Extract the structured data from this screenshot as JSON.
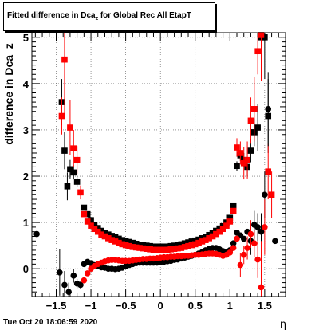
{
  "header": {
    "title_prefix": "Fitted difference in Dca",
    "title_sub": "z",
    "title_suffix": " for Global Rec All EtapT"
  },
  "footer": {
    "timestamp": "Tue Oct 20 18:06:59 2020"
  },
  "chart_data": {
    "type": "scatter",
    "title": "Fitted difference in Dca_z for Global Rec All EtapT",
    "xlabel": "η",
    "ylabel": "difference in Dca_z",
    "xlim": [
      -1.85,
      1.8
    ],
    "ylim": [
      -0.6,
      5.1
    ],
    "xticks": [
      -1.5,
      -1,
      -0.5,
      0,
      0.5,
      1,
      1.5
    ],
    "xtick_labels": [
      "−1.5",
      "−1",
      "−0.5",
      "0",
      "0.5",
      "1",
      "1.5"
    ],
    "yticks": [
      0,
      1,
      2,
      3,
      4,
      5
    ],
    "ytick_labels": [
      "0",
      "1",
      "2",
      "3",
      "4",
      "5"
    ],
    "grid": true,
    "colors": {
      "black": "#000000",
      "red": "#ff0000"
    },
    "series": [
      {
        "marker": "square",
        "color": "#000000",
        "points": [
          {
            "x": -1.42,
            "y": 3.6,
            "err": 0.5
          },
          {
            "x": -1.38,
            "y": 2.55,
            "err": 0.4
          },
          {
            "x": -1.34,
            "y": 1.78,
            "err": 0.3
          },
          {
            "x": -1.3,
            "y": 2.15,
            "err": 0.2
          },
          {
            "x": -1.25,
            "y": 2.08,
            "err": 0.15
          },
          {
            "x": -1.2,
            "y": 1.88,
            "err": 0.12
          },
          {
            "x": -1.1,
            "y": 1.32,
            "err": 0.05
          },
          {
            "x": -1.05,
            "y": 1.18
          },
          {
            "x": -1.0,
            "y": 1.05
          },
          {
            "x": -0.95,
            "y": 0.95
          },
          {
            "x": -0.9,
            "y": 0.88
          },
          {
            "x": -0.85,
            "y": 0.82
          },
          {
            "x": -0.8,
            "y": 0.78
          },
          {
            "x": -0.75,
            "y": 0.74
          },
          {
            "x": -0.7,
            "y": 0.71
          },
          {
            "x": -0.65,
            "y": 0.68
          },
          {
            "x": -0.6,
            "y": 0.65
          },
          {
            "x": -0.55,
            "y": 0.62
          },
          {
            "x": -0.5,
            "y": 0.6
          },
          {
            "x": -0.45,
            "y": 0.58
          },
          {
            "x": -0.4,
            "y": 0.56
          },
          {
            "x": -0.35,
            "y": 0.54
          },
          {
            "x": -0.3,
            "y": 0.52
          },
          {
            "x": -0.25,
            "y": 0.51
          },
          {
            "x": -0.2,
            "y": 0.5
          },
          {
            "x": -0.15,
            "y": 0.49
          },
          {
            "x": -0.1,
            "y": 0.48
          },
          {
            "x": -0.05,
            "y": 0.48
          },
          {
            "x": 0.0,
            "y": 0.48
          },
          {
            "x": 0.05,
            "y": 0.48
          },
          {
            "x": 0.1,
            "y": 0.48
          },
          {
            "x": 0.15,
            "y": 0.49
          },
          {
            "x": 0.2,
            "y": 0.5
          },
          {
            "x": 0.25,
            "y": 0.51
          },
          {
            "x": 0.3,
            "y": 0.53
          },
          {
            "x": 0.35,
            "y": 0.55
          },
          {
            "x": 0.4,
            "y": 0.57
          },
          {
            "x": 0.45,
            "y": 0.59
          },
          {
            "x": 0.5,
            "y": 0.61
          },
          {
            "x": 0.55,
            "y": 0.63
          },
          {
            "x": 0.6,
            "y": 0.66
          },
          {
            "x": 0.65,
            "y": 0.69
          },
          {
            "x": 0.7,
            "y": 0.73
          },
          {
            "x": 0.75,
            "y": 0.77
          },
          {
            "x": 0.8,
            "y": 0.82
          },
          {
            "x": 0.85,
            "y": 0.87
          },
          {
            "x": 0.9,
            "y": 0.92
          },
          {
            "x": 0.95,
            "y": 1.0
          },
          {
            "x": 1.0,
            "y": 1.1
          },
          {
            "x": 1.05,
            "y": 1.35
          },
          {
            "x": 1.1,
            "y": 2.22,
            "err": 0.1
          },
          {
            "x": 1.15,
            "y": 2.45,
            "err": 0.12
          },
          {
            "x": 1.2,
            "y": 2.35,
            "err": 0.15
          },
          {
            "x": 1.25,
            "y": 2.2,
            "err": 0.2
          },
          {
            "x": 1.3,
            "y": 2.55,
            "err": 0.25
          },
          {
            "x": 1.35,
            "y": 2.95,
            "err": 0.3
          },
          {
            "x": 1.4,
            "y": 3.05,
            "err": 0.5
          },
          {
            "x": 1.45,
            "y": 5.0,
            "err": 0.9
          },
          {
            "x": 1.5,
            "y": 5.0,
            "err": 0.9
          },
          {
            "x": 1.55,
            "y": 3.3,
            "err": 0.8
          }
        ]
      },
      {
        "marker": "square",
        "color": "#ff0000",
        "points": [
          {
            "x": -1.42,
            "y": 3.3,
            "err": 0.4
          },
          {
            "x": -1.38,
            "y": 4.52,
            "err": 1.2
          },
          {
            "x": -1.3,
            "y": 3.05,
            "err": 0.6
          },
          {
            "x": -1.25,
            "y": 2.6,
            "err": 0.4
          },
          {
            "x": -1.2,
            "y": 2.35,
            "err": 0.3
          },
          {
            "x": -1.15,
            "y": 1.65,
            "err": 0.15
          },
          {
            "x": -1.1,
            "y": 1.18,
            "err": 0.05
          },
          {
            "x": -1.05,
            "y": 1.02
          },
          {
            "x": -1.0,
            "y": 0.93
          },
          {
            "x": -0.95,
            "y": 0.86
          },
          {
            "x": -0.9,
            "y": 0.8
          },
          {
            "x": -0.85,
            "y": 0.74
          },
          {
            "x": -0.8,
            "y": 0.7
          },
          {
            "x": -0.75,
            "y": 0.66
          },
          {
            "x": -0.7,
            "y": 0.62
          },
          {
            "x": -0.65,
            "y": 0.59
          },
          {
            "x": -0.6,
            "y": 0.56
          },
          {
            "x": -0.55,
            "y": 0.53
          },
          {
            "x": -0.5,
            "y": 0.51
          },
          {
            "x": -0.45,
            "y": 0.49
          },
          {
            "x": -0.4,
            "y": 0.47
          },
          {
            "x": -0.35,
            "y": 0.46
          },
          {
            "x": -0.3,
            "y": 0.45
          },
          {
            "x": -0.25,
            "y": 0.44
          },
          {
            "x": -0.2,
            "y": 0.43
          },
          {
            "x": -0.15,
            "y": 0.42
          },
          {
            "x": -0.1,
            "y": 0.41
          },
          {
            "x": -0.05,
            "y": 0.41
          },
          {
            "x": 0.0,
            "y": 0.41
          },
          {
            "x": 0.05,
            "y": 0.41
          },
          {
            "x": 0.1,
            "y": 0.41
          },
          {
            "x": 0.15,
            "y": 0.42
          },
          {
            "x": 0.2,
            "y": 0.43
          },
          {
            "x": 0.25,
            "y": 0.44
          },
          {
            "x": 0.3,
            "y": 0.45
          },
          {
            "x": 0.35,
            "y": 0.47
          },
          {
            "x": 0.4,
            "y": 0.49
          },
          {
            "x": 0.45,
            "y": 0.51
          },
          {
            "x": 0.5,
            "y": 0.53
          },
          {
            "x": 0.55,
            "y": 0.56
          },
          {
            "x": 0.6,
            "y": 0.59
          },
          {
            "x": 0.65,
            "y": 0.62
          },
          {
            "x": 0.7,
            "y": 0.66
          },
          {
            "x": 0.75,
            "y": 0.7
          },
          {
            "x": 0.8,
            "y": 0.75
          },
          {
            "x": 0.85,
            "y": 0.8
          },
          {
            "x": 0.9,
            "y": 0.86
          },
          {
            "x": 0.95,
            "y": 0.93
          },
          {
            "x": 1.0,
            "y": 1.02
          },
          {
            "x": 1.05,
            "y": 1.25
          },
          {
            "x": 1.1,
            "y": 2.62,
            "err": 0.2
          },
          {
            "x": 1.15,
            "y": 2.5,
            "err": 0.25
          },
          {
            "x": 1.2,
            "y": 2.28,
            "err": 0.35
          },
          {
            "x": 1.25,
            "y": 2.35,
            "err": 0.4
          },
          {
            "x": 1.3,
            "y": 3.2,
            "err": 0.5
          },
          {
            "x": 1.35,
            "y": 3.45,
            "err": 0.7
          },
          {
            "x": 1.4,
            "y": 4.7,
            "err": 0.5
          },
          {
            "x": 1.45,
            "y": 5.05,
            "err": 1.0
          },
          {
            "x": 1.55,
            "y": 2.1,
            "err": 0.6
          },
          {
            "x": 1.6,
            "y": 1.6,
            "err": 0.5
          }
        ]
      },
      {
        "marker": "circle",
        "color": "#000000",
        "points": [
          {
            "x": -1.78,
            "y": 0.75
          },
          {
            "x": -1.45,
            "y": -0.08,
            "err": 0.5
          },
          {
            "x": -1.38,
            "y": -0.35,
            "err": 0.3
          },
          {
            "x": -1.32,
            "y": -0.5,
            "err": 0.2
          },
          {
            "x": -1.25,
            "y": -0.15,
            "err": 0.15
          },
          {
            "x": -1.2,
            "y": -0.32,
            "err": 0.1
          },
          {
            "x": -1.15,
            "y": -0.35,
            "err": 0.08
          },
          {
            "x": -1.1,
            "y": 0.1
          },
          {
            "x": -1.05,
            "y": 0.15
          },
          {
            "x": -1.0,
            "y": 0.12
          },
          {
            "x": -0.95,
            "y": 0.08
          },
          {
            "x": -0.9,
            "y": 0.05
          },
          {
            "x": -0.85,
            "y": 0.03
          },
          {
            "x": -0.8,
            "y": 0.02
          },
          {
            "x": -0.75,
            "y": 0.0
          },
          {
            "x": -0.7,
            "y": 0.0
          },
          {
            "x": -0.65,
            "y": -0.01
          },
          {
            "x": -0.6,
            "y": 0.0
          },
          {
            "x": -0.55,
            "y": 0.02
          },
          {
            "x": -0.5,
            "y": 0.05
          },
          {
            "x": -0.45,
            "y": 0.08
          },
          {
            "x": -0.4,
            "y": 0.1
          },
          {
            "x": -0.35,
            "y": 0.12
          },
          {
            "x": -0.3,
            "y": 0.13
          },
          {
            "x": -0.25,
            "y": 0.13
          },
          {
            "x": -0.2,
            "y": 0.13
          },
          {
            "x": -0.15,
            "y": 0.13
          },
          {
            "x": -0.1,
            "y": 0.13
          },
          {
            "x": -0.05,
            "y": 0.13
          },
          {
            "x": 0.0,
            "y": 0.14
          },
          {
            "x": 0.05,
            "y": 0.15
          },
          {
            "x": 0.1,
            "y": 0.16
          },
          {
            "x": 0.15,
            "y": 0.17
          },
          {
            "x": 0.2,
            "y": 0.19
          },
          {
            "x": 0.25,
            "y": 0.2
          },
          {
            "x": 0.3,
            "y": 0.22
          },
          {
            "x": 0.35,
            "y": 0.24
          },
          {
            "x": 0.4,
            "y": 0.26
          },
          {
            "x": 0.45,
            "y": 0.28
          },
          {
            "x": 0.5,
            "y": 0.3
          },
          {
            "x": 0.55,
            "y": 0.33
          },
          {
            "x": 0.6,
            "y": 0.36
          },
          {
            "x": 0.65,
            "y": 0.4
          },
          {
            "x": 0.7,
            "y": 0.43
          },
          {
            "x": 0.75,
            "y": 0.45
          },
          {
            "x": 0.8,
            "y": 0.45
          },
          {
            "x": 0.85,
            "y": 0.42
          },
          {
            "x": 0.9,
            "y": 0.38
          },
          {
            "x": 0.95,
            "y": 0.35
          },
          {
            "x": 1.0,
            "y": 0.4
          },
          {
            "x": 1.05,
            "y": 0.55
          },
          {
            "x": 1.1,
            "y": 0.78
          },
          {
            "x": 1.15,
            "y": 0.72
          },
          {
            "x": 1.2,
            "y": 0.65
          },
          {
            "x": 1.25,
            "y": 0.8
          },
          {
            "x": 1.3,
            "y": 0.6,
            "err": 0.3
          },
          {
            "x": 1.35,
            "y": 0.95,
            "err": 0.3
          },
          {
            "x": 1.4,
            "y": 0.9,
            "err": 0.3
          },
          {
            "x": 1.45,
            "y": 0.8,
            "err": 0.4
          },
          {
            "x": 1.5,
            "y": 1.6,
            "err": 0.5
          },
          {
            "x": 1.55,
            "y": 3.45,
            "err": 0.8
          },
          {
            "x": 1.65,
            "y": 0.6
          }
        ]
      },
      {
        "marker": "circle",
        "color": "#ff0000",
        "points": [
          {
            "x": -1.1,
            "y": -0.25
          },
          {
            "x": -1.05,
            "y": -0.1
          },
          {
            "x": -1.0,
            "y": 0.0
          },
          {
            "x": -0.95,
            "y": 0.06
          },
          {
            "x": -0.9,
            "y": 0.1
          },
          {
            "x": -0.85,
            "y": 0.13
          },
          {
            "x": -0.8,
            "y": 0.16
          },
          {
            "x": -0.75,
            "y": 0.18
          },
          {
            "x": -0.7,
            "y": 0.19
          },
          {
            "x": -0.65,
            "y": 0.19
          },
          {
            "x": -0.6,
            "y": 0.18
          },
          {
            "x": -0.55,
            "y": 0.17
          },
          {
            "x": -0.5,
            "y": 0.17
          },
          {
            "x": -0.45,
            "y": 0.17
          },
          {
            "x": -0.4,
            "y": 0.18
          },
          {
            "x": -0.35,
            "y": 0.19
          },
          {
            "x": -0.3,
            "y": 0.2
          },
          {
            "x": -0.25,
            "y": 0.21
          },
          {
            "x": -0.2,
            "y": 0.21
          },
          {
            "x": -0.15,
            "y": 0.22
          },
          {
            "x": -0.1,
            "y": 0.22
          },
          {
            "x": -0.05,
            "y": 0.23
          },
          {
            "x": 0.0,
            "y": 0.24
          },
          {
            "x": 0.05,
            "y": 0.25
          },
          {
            "x": 0.1,
            "y": 0.25
          },
          {
            "x": 0.15,
            "y": 0.26
          },
          {
            "x": 0.2,
            "y": 0.26
          },
          {
            "x": 0.25,
            "y": 0.27
          },
          {
            "x": 0.3,
            "y": 0.27
          },
          {
            "x": 0.35,
            "y": 0.28
          },
          {
            "x": 0.4,
            "y": 0.28
          },
          {
            "x": 0.45,
            "y": 0.29
          },
          {
            "x": 0.5,
            "y": 0.3
          },
          {
            "x": 0.55,
            "y": 0.3
          },
          {
            "x": 0.6,
            "y": 0.31
          },
          {
            "x": 0.65,
            "y": 0.32
          },
          {
            "x": 0.7,
            "y": 0.33
          },
          {
            "x": 0.75,
            "y": 0.33
          },
          {
            "x": 0.8,
            "y": 0.32
          },
          {
            "x": 0.85,
            "y": 0.3
          },
          {
            "x": 0.9,
            "y": 0.28
          },
          {
            "x": 0.95,
            "y": 0.3
          },
          {
            "x": 1.0,
            "y": 0.35
          },
          {
            "x": 1.05,
            "y": 0.45
          },
          {
            "x": 1.1,
            "y": 0.65
          },
          {
            "x": 1.15,
            "y": 0.08,
            "err": 0.25
          },
          {
            "x": 1.2,
            "y": 0.3,
            "err": 0.2
          },
          {
            "x": 1.25,
            "y": 0.45,
            "err": 0.25
          },
          {
            "x": 1.3,
            "y": 0.75,
            "err": 0.3
          },
          {
            "x": 1.35,
            "y": 0.55,
            "err": 0.3
          },
          {
            "x": 1.4,
            "y": 0.2,
            "err": 0.4
          },
          {
            "x": 1.45,
            "y": -0.4,
            "err": 1.0
          },
          {
            "x": 1.5,
            "y": 0.9,
            "err": 0.6
          }
        ]
      }
    ]
  }
}
